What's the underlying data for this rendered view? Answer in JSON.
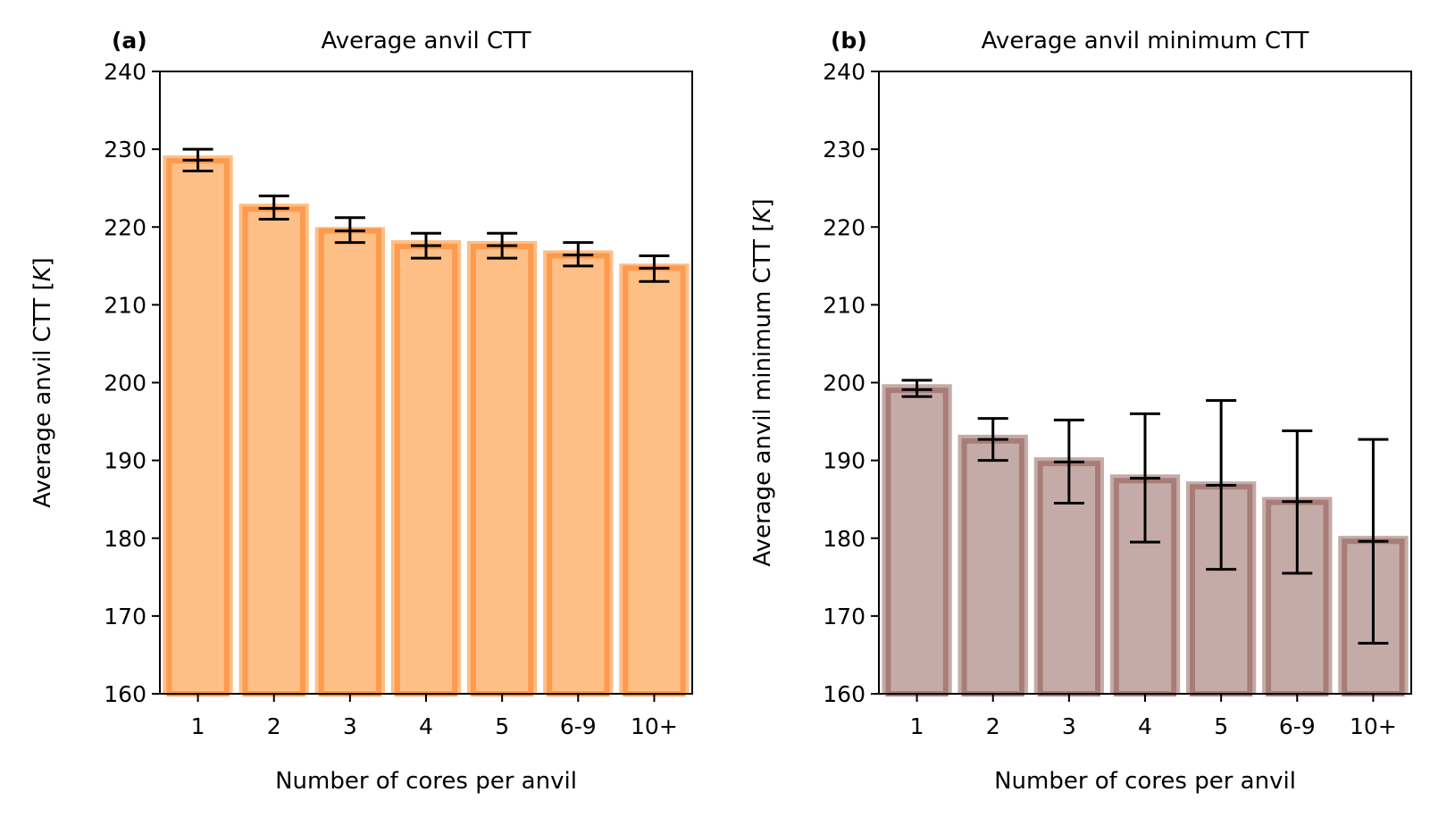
{
  "chart_data": [
    {
      "type": "bar",
      "panel_label": "(a)",
      "title": "Average anvil CTT",
      "xlabel": "Number of cores per anvil",
      "ylabel_main": "Average anvil CTT [",
      "ylabel_unit": "K",
      "ylabel_close": "]",
      "ylim": [
        160,
        240
      ],
      "yticks": [
        "160",
        "170",
        "180",
        "190",
        "200",
        "210",
        "220",
        "230",
        "240"
      ],
      "categories": [
        "1",
        "2",
        "3",
        "4",
        "5",
        "6-9",
        "10+"
      ],
      "values": [
        229.2,
        223.0,
        220.0,
        218.3,
        218.2,
        217.0,
        215.3
      ],
      "inner_values": [
        228.5,
        222.3,
        219.5,
        217.5,
        217.5,
        216.3,
        214.7
      ],
      "error_center": [
        228.6,
        222.4,
        219.5,
        217.6,
        217.6,
        216.4,
        214.7
      ],
      "error_low": [
        227.2,
        221.0,
        218.0,
        216.0,
        216.0,
        215.0,
        213.0
      ],
      "error_high": [
        230.0,
        224.0,
        221.2,
        219.2,
        219.2,
        218.0,
        216.3
      ],
      "grid": false,
      "bar_color": "#fdbf86",
      "edge_color": "#fd9a4e",
      "error_color": "#000000"
    },
    {
      "type": "bar",
      "panel_label": "(b)",
      "title": "Average anvil minimum CTT",
      "xlabel": "Number of cores per anvil",
      "ylabel_main": "Average anvil minimum CTT [",
      "ylabel_unit": "K",
      "ylabel_close": "]",
      "ylim": [
        160,
        240
      ],
      "yticks": [
        "160",
        "170",
        "180",
        "190",
        "200",
        "210",
        "220",
        "230",
        "240"
      ],
      "categories": [
        "1",
        "2",
        "3",
        "4",
        "5",
        "6-9",
        "10+"
      ],
      "values": [
        199.8,
        193.3,
        190.4,
        188.2,
        187.3,
        185.3,
        180.3
      ],
      "inner_values": [
        199.0,
        192.5,
        189.6,
        187.4,
        186.6,
        184.6,
        179.6
      ],
      "error_center": [
        199.1,
        192.7,
        189.8,
        187.7,
        186.8,
        184.7,
        179.6
      ],
      "error_low": [
        198.2,
        190.0,
        184.5,
        179.5,
        176.0,
        175.5,
        166.5
      ],
      "error_high": [
        200.3,
        195.4,
        195.2,
        196.0,
        197.7,
        193.8,
        192.7
      ],
      "grid": false,
      "bar_color": "#c5aba7",
      "edge_color": "#a87d78",
      "error_color": "#000000"
    }
  ]
}
